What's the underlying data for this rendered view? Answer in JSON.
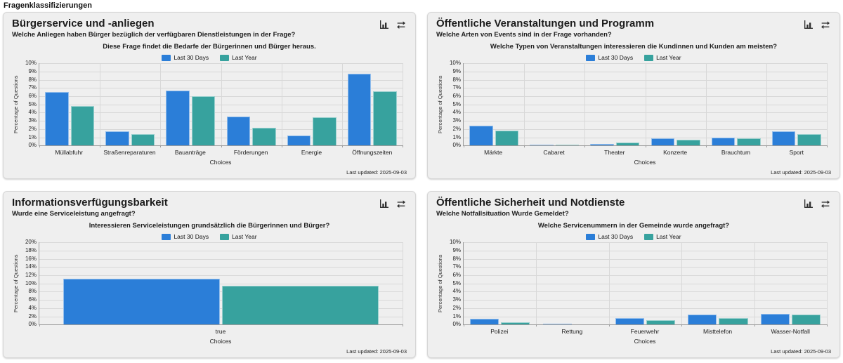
{
  "page": {
    "title": "Fragenklassifizierungen"
  },
  "actions": {
    "chart_icon": "bar-chart",
    "swap_icon": "swap-axes"
  },
  "chart_data": [
    {
      "type": "bar",
      "panel_title": "Bürgerservice und -anliegen",
      "panel_subtitle": "Welche Anliegen haben Bürger bezüglich der verfügbaren Dienstleistungen in der Frage?",
      "question": "Diese Frage findet die Bedarfe der Bürgerinnen und Bürger heraus.",
      "categories": [
        "Müllabfuhr",
        "Straßenreparaturen",
        "Bauanträge",
        "Förderungen",
        "Energie",
        "Öffnungszeiten"
      ],
      "series": [
        {
          "name": "Last 30 Days",
          "color": "#2b7ed8",
          "values": [
            6.5,
            1.7,
            6.7,
            3.5,
            1.2,
            8.7
          ]
        },
        {
          "name": "Last Year",
          "color": "#37a29e",
          "values": [
            4.8,
            1.4,
            6.0,
            2.2,
            3.4,
            6.6
          ]
        }
      ],
      "xlabel": "Choices",
      "ylabel": "Percentage of Questions",
      "ylim": [
        0,
        10
      ],
      "ystep": 1,
      "ytick_suffix": "%",
      "grid": true,
      "legend_position": "top-center",
      "last_updated": "Last updated: 2025-09-03"
    },
    {
      "type": "bar",
      "panel_title": "Öffentliche Veranstaltungen und Programm",
      "panel_subtitle": "Welche Arten von Events sind in der Frage vorhanden?",
      "question": "Welche Typen von Veranstaltungen interessieren die Kundinnen und Kunden am meisten?",
      "categories": [
        "Märkte",
        "Cabaret",
        "Theater",
        "Konzerte",
        "Brauchtum",
        "Sport"
      ],
      "series": [
        {
          "name": "Last 30 Days",
          "color": "#2b7ed8",
          "values": [
            2.4,
            0.1,
            0.2,
            0.9,
            1.0,
            1.7
          ]
        },
        {
          "name": "Last Year",
          "color": "#37a29e",
          "values": [
            1.8,
            0.1,
            0.4,
            0.7,
            0.9,
            1.4
          ]
        }
      ],
      "xlabel": "Choices",
      "ylabel": "Percentage of Questions",
      "ylim": [
        0,
        10
      ],
      "ystep": 1,
      "ytick_suffix": "%",
      "grid": true,
      "legend_position": "top-center",
      "last_updated": "Last updated: 2025-09-03"
    },
    {
      "type": "bar",
      "panel_title": "Informationsverfügungsbarkeit",
      "panel_subtitle": "Wurde eine Serviceleistung angefragt?",
      "question": "Interessieren  Serviceleistungen grundsätzlich die Bürgerinnen und Bürger?",
      "categories": [
        "true"
      ],
      "series": [
        {
          "name": "Last 30 Days",
          "color": "#2b7ed8",
          "values": [
            11.2
          ]
        },
        {
          "name": "Last Year",
          "color": "#37a29e",
          "values": [
            9.4
          ]
        }
      ],
      "xlabel": "Choices",
      "ylabel": "Percentage of Questions",
      "ylim": [
        0,
        20
      ],
      "ystep": 2,
      "ytick_suffix": "%",
      "grid": true,
      "legend_position": "top-center",
      "last_updated": "Last updated: 2025-09-03"
    },
    {
      "type": "bar",
      "panel_title": "Öffentliche Sicherheit und Notdienste",
      "panel_subtitle": "Welche Notfallsituation Wurde Gemeldet?",
      "question": "Welche Servicenummern in der Gemeinde wurde angefragt?",
      "categories": [
        "Polizei",
        "Rettung",
        "Feuerwehr",
        "Misttelefon",
        "Wasser-Notfall"
      ],
      "series": [
        {
          "name": "Last 30 Days",
          "color": "#2b7ed8",
          "values": [
            0.7,
            0.1,
            0.8,
            1.2,
            1.3
          ]
        },
        {
          "name": "Last Year",
          "color": "#37a29e",
          "values": [
            0.3,
            0,
            0.5,
            0.8,
            1.2
          ]
        }
      ],
      "xlabel": "Choices",
      "ylabel": "Percentage of Questions",
      "ylim": [
        0,
        10
      ],
      "ystep": 1,
      "ytick_suffix": "%",
      "grid": true,
      "legend_position": "top-center",
      "last_updated": "Last updated: 2025-09-03"
    }
  ]
}
